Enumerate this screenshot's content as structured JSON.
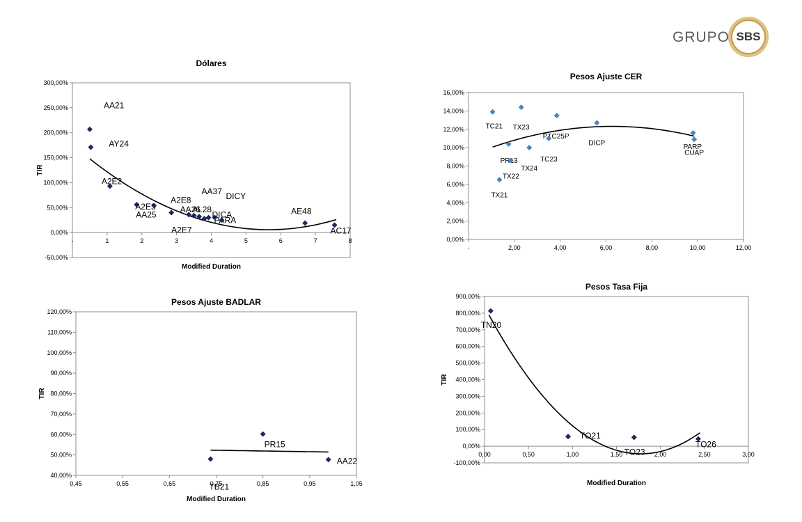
{
  "logo": {
    "text": "GRUPO",
    "badge": "SBS",
    "colors": {
      "ring": "#c49a4a",
      "text": "#3a3a3a"
    }
  },
  "chart_data": [
    {
      "id": "dolares",
      "type": "scatter",
      "title": "Dólares",
      "xlabel": "Modified Duration",
      "ylabel": "TIR",
      "xlim": [
        0,
        8
      ],
      "ylim": [
        -0.5,
        3.0
      ],
      "xticks": [
        0,
        1,
        2,
        3,
        4,
        5,
        6,
        7,
        8
      ],
      "xtick_labels": [
        "-",
        "1",
        "2",
        "3",
        "4",
        "5",
        "6",
        "7",
        "8"
      ],
      "yticks": [
        -0.5,
        0,
        0.5,
        1,
        1.5,
        2,
        2.5,
        3
      ],
      "ytick_labels": [
        "-50,00%",
        "0,00%",
        "50,00%",
        "100,00%",
        "150,00%",
        "200,00%",
        "250,00%",
        "300,00%"
      ],
      "marker_color": "#1c2a5a",
      "points": [
        {
          "x": 0.5,
          "y": 2.07,
          "label": "AA21"
        },
        {
          "x": 0.53,
          "y": 1.71,
          "label": "AY24"
        },
        {
          "x": 1.08,
          "y": 0.93,
          "label": "A2E2"
        },
        {
          "x": 1.85,
          "y": 0.56,
          "label": "A2E3"
        },
        {
          "x": 2.35,
          "y": 0.54,
          "label": "AA25"
        },
        {
          "x": 2.85,
          "y": 0.4,
          "label": "A2E7"
        },
        {
          "x": 3.35,
          "y": 0.36,
          "label": "A2E8"
        },
        {
          "x": 3.5,
          "y": 0.34,
          "label": "AA26"
        },
        {
          "x": 3.65,
          "y": 0.32,
          "label": "AL28"
        },
        {
          "x": 3.8,
          "y": 0.28,
          "label": "AA37"
        },
        {
          "x": 3.92,
          "y": 0.3,
          "label": "PARA"
        },
        {
          "x": 4.1,
          "y": 0.3,
          "label": "DICA"
        },
        {
          "x": 4.3,
          "y": 0.25,
          "label": "DICY"
        },
        {
          "x": 6.7,
          "y": 0.19,
          "label": "AE48"
        },
        {
          "x": 7.55,
          "y": 0.15,
          "label": "AC17"
        }
      ],
      "trend": {
        "type": "poly2",
        "x_range": [
          0.5,
          7.6
        ],
        "coef": [
          0.0535,
          -0.605,
          1.768
        ]
      }
    },
    {
      "id": "cer",
      "type": "scatter",
      "title": "Pesos Ajuste CER",
      "xlabel": "",
      "ylabel": "",
      "xlim": [
        0,
        12
      ],
      "ylim": [
        0,
        0.16
      ],
      "xticks": [
        0,
        2,
        4,
        6,
        8,
        10,
        12
      ],
      "xtick_labels": [
        "-",
        "2,00",
        "4,00",
        "6,00",
        "8,00",
        "10,00",
        "12,00"
      ],
      "yticks": [
        0,
        0.02,
        0.04,
        0.06,
        0.08,
        0.1,
        0.12,
        0.14,
        0.16
      ],
      "ytick_labels": [
        "0,00%",
        "2,00%",
        "4,00%",
        "6,00%",
        "8,00%",
        "10,00%",
        "12,00%",
        "14,00%",
        "16,00%"
      ],
      "marker_color": "#4f81bd",
      "points": [
        {
          "x": 1.05,
          "y": 0.139,
          "label": "TC21"
        },
        {
          "x": 2.3,
          "y": 0.144,
          "label": "TX23"
        },
        {
          "x": 3.85,
          "y": 0.135,
          "label": "PTC25P"
        },
        {
          "x": 1.75,
          "y": 0.104,
          "label": "PR13"
        },
        {
          "x": 2.65,
          "y": 0.1,
          "label": "TX24"
        },
        {
          "x": 3.5,
          "y": 0.11,
          "label": "TC23"
        },
        {
          "x": 1.85,
          "y": 0.086,
          "label": "TX22"
        },
        {
          "x": 1.35,
          "y": 0.065,
          "label": "TX21"
        },
        {
          "x": 5.6,
          "y": 0.127,
          "label": "DICP"
        },
        {
          "x": 9.8,
          "y": 0.116,
          "label": "PARP"
        },
        {
          "x": 9.85,
          "y": 0.109,
          "label": "CUAP"
        }
      ],
      "trend": {
        "type": "poly2",
        "x_range": [
          1.05,
          9.85
        ],
        "coef": [
          -0.00083,
          0.0104,
          0.0906
        ]
      }
    },
    {
      "id": "badlar",
      "type": "scatter",
      "title": "Pesos Ajuste BADLAR",
      "xlabel": "Modified Duration",
      "ylabel": "TIR",
      "xlim": [
        0.45,
        1.05
      ],
      "ylim": [
        0.4,
        1.2
      ],
      "xticks": [
        0.45,
        0.55,
        0.65,
        0.75,
        0.85,
        0.95,
        1.05
      ],
      "xtick_labels": [
        "0,45",
        "0,55",
        "0,65",
        "0,75",
        "0,85",
        "0,95",
        "1,05"
      ],
      "yticks": [
        0.4,
        0.5,
        0.6,
        0.7,
        0.8,
        0.9,
        1.0,
        1.1,
        1.2
      ],
      "ytick_labels": [
        "40,00%",
        "50,00%",
        "60,00%",
        "70,00%",
        "80,00%",
        "90,00%",
        "100,00%",
        "110,00%",
        "120,00%"
      ],
      "marker_color": "#1c2a5a",
      "points": [
        {
          "x": 0.738,
          "y": 0.48,
          "label": "TB21"
        },
        {
          "x": 0.85,
          "y": 0.602,
          "label": "PR15"
        },
        {
          "x": 0.99,
          "y": 0.477,
          "label": "AA22"
        }
      ],
      "trend": {
        "type": "linear",
        "x_range": [
          0.738,
          0.99
        ],
        "coef": [
          -0.0357,
          0.5496
        ]
      }
    },
    {
      "id": "tasa_fija",
      "type": "scatter",
      "title": "Pesos Tasa Fija",
      "xlabel": "Modified Duration",
      "ylabel": "TIR",
      "xlim": [
        0,
        3
      ],
      "ylim": [
        -1,
        9
      ],
      "xticks": [
        0,
        0.5,
        1,
        1.5,
        2,
        2.5,
        3
      ],
      "xtick_labels": [
        "0,00",
        "0,50",
        "1,00",
        "1,50",
        "2,00",
        "2,50",
        "3,00"
      ],
      "yticks": [
        -1,
        0,
        1,
        2,
        3,
        4,
        5,
        6,
        7,
        8,
        9
      ],
      "ytick_labels": [
        "-100,00%",
        "0,00%",
        "100,00%",
        "200,00%",
        "300,00%",
        "400,00%",
        "500,00%",
        "600,00%",
        "700,00%",
        "800,00%",
        "900,00%"
      ],
      "marker_color": "#1c2a5a",
      "points": [
        {
          "x": 0.07,
          "y": 8.13,
          "label": "TN20"
        },
        {
          "x": 0.95,
          "y": 0.58,
          "label": "TO21"
        },
        {
          "x": 1.7,
          "y": 0.53,
          "label": "TO23"
        },
        {
          "x": 2.43,
          "y": 0.44,
          "label": "TO26"
        }
      ],
      "trend": {
        "type": "poly2",
        "x_range": [
          0.05,
          2.45
        ],
        "coef": [
          2.8,
          -9.95,
          8.38
        ]
      }
    }
  ]
}
